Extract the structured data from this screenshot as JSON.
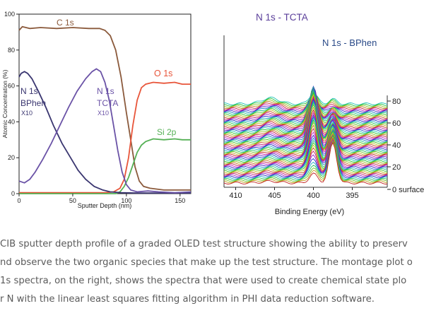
{
  "chart_data": [
    {
      "type": "line",
      "title": "",
      "xlabel": "Sputter Depth (nm)",
      "ylabel": "Atomic Concentration (%)",
      "xlim": [
        0,
        160
      ],
      "ylim": [
        0,
        100
      ],
      "xticks": [
        "0",
        "50",
        "100",
        "150"
      ],
      "yticks": [
        "0",
        "20",
        "40",
        "60",
        "80",
        "100"
      ],
      "grid": false,
      "colors": {
        "C1s": "#8b5a3c",
        "O1s": "#e8553a",
        "Si2p": "#55b055",
        "N1sBPhen": "#3a3670",
        "N1sTCTA": "#6a52a6"
      },
      "annotations": {
        "c1s": "C 1s",
        "o1s": "O 1s",
        "si2p": "Si 2p",
        "bphen": [
          "N 1s",
          "BPhen",
          "X10"
        ],
        "tcta": [
          "N 1s",
          "TCTA",
          "X10"
        ]
      },
      "series": [
        {
          "name": "C 1s",
          "color": "#8b5a3c",
          "points": [
            [
              0,
              91
            ],
            [
              3,
              93
            ],
            [
              10,
              92
            ],
            [
              20,
              92.5
            ],
            [
              35,
              92
            ],
            [
              50,
              92.5
            ],
            [
              65,
              92
            ],
            [
              75,
              92
            ],
            [
              80,
              91
            ],
            [
              85,
              88
            ],
            [
              90,
              80
            ],
            [
              95,
              65
            ],
            [
              100,
              45
            ],
            [
              104,
              30
            ],
            [
              108,
              15
            ],
            [
              112,
              7
            ],
            [
              116,
              4
            ],
            [
              122,
              3
            ],
            [
              135,
              2
            ],
            [
              150,
              2
            ],
            [
              160,
              2
            ]
          ]
        },
        {
          "name": "O 1s",
          "color": "#e8553a",
          "points": [
            [
              0,
              0.5
            ],
            [
              50,
              0.5
            ],
            [
              80,
              0.5
            ],
            [
              88,
              1
            ],
            [
              94,
              3
            ],
            [
              98,
              8
            ],
            [
              102,
              20
            ],
            [
              106,
              38
            ],
            [
              110,
              52
            ],
            [
              114,
              59
            ],
            [
              118,
              61
            ],
            [
              125,
              62
            ],
            [
              135,
              61.5
            ],
            [
              145,
              62
            ],
            [
              152,
              61
            ],
            [
              160,
              61
            ]
          ]
        },
        {
          "name": "Si 2p",
          "color": "#55b055",
          "points": [
            [
              0,
              0
            ],
            [
              90,
              0
            ],
            [
              94,
              1
            ],
            [
              98,
              4
            ],
            [
              102,
              9
            ],
            [
              106,
              16
            ],
            [
              110,
              23
            ],
            [
              114,
              27
            ],
            [
              118,
              29
            ],
            [
              125,
              30.5
            ],
            [
              135,
              30
            ],
            [
              145,
              30.5
            ],
            [
              152,
              30
            ],
            [
              160,
              30
            ]
          ]
        },
        {
          "name": "N 1s BPhen X10",
          "color": "#3a3670",
          "points": [
            [
              0,
              65
            ],
            [
              2,
              67
            ],
            [
              5,
              68
            ],
            [
              8,
              67
            ],
            [
              12,
              64
            ],
            [
              18,
              57
            ],
            [
              25,
              48
            ],
            [
              32,
              38
            ],
            [
              40,
              28
            ],
            [
              48,
              20
            ],
            [
              55,
              13
            ],
            [
              62,
              8
            ],
            [
              70,
              4
            ],
            [
              78,
              2
            ],
            [
              85,
              1
            ],
            [
              95,
              0.5
            ],
            [
              110,
              0.3
            ],
            [
              130,
              0.3
            ],
            [
              160,
              0.3
            ]
          ]
        },
        {
          "name": "N 1s TCTA X10",
          "color": "#6a52a6",
          "points": [
            [
              0,
              7
            ],
            [
              5,
              6
            ],
            [
              10,
              8
            ],
            [
              15,
              12
            ],
            [
              22,
              19
            ],
            [
              30,
              28
            ],
            [
              38,
              38
            ],
            [
              46,
              48
            ],
            [
              54,
              57
            ],
            [
              62,
              64
            ],
            [
              68,
              68
            ],
            [
              72,
              69.5
            ],
            [
              76,
              68
            ],
            [
              80,
              62
            ],
            [
              84,
              52
            ],
            [
              88,
              38
            ],
            [
              92,
              24
            ],
            [
              96,
              12
            ],
            [
              100,
              5
            ],
            [
              104,
              2
            ],
            [
              110,
              1
            ],
            [
              120,
              1.5
            ],
            [
              130,
              1
            ],
            [
              145,
              0.5
            ],
            [
              160,
              1
            ]
          ]
        }
      ]
    },
    {
      "type": "line",
      "title": "",
      "xlabel": "Binding Energy (eV)",
      "ylabel": "",
      "xlim": [
        411.5,
        390.5
      ],
      "xticks": [
        "410",
        "405",
        "400",
        "395"
      ],
      "yticks_right": [
        "80",
        "60",
        "40",
        "20",
        "0 surface"
      ],
      "annotations": {
        "tcta": "N 1s - TCTA",
        "bphen": "N 1s - BPhen"
      },
      "peak_positions_eV": {
        "tcta": 400.0,
        "bphen": 397.5
      },
      "grid": false
    }
  ],
  "caption": {
    "lines": [
      "CIB sputter depth profile of a graded OLED test structure showing the ability to preserv",
      "nd observe the two organic species that make up the test structure. The montage plot o",
      " 1s spectra, on the right, shows the spectra that were used to create chemical state plo",
      "r N with the linear least squares fitting algorithm in PHI data reduction software."
    ]
  }
}
